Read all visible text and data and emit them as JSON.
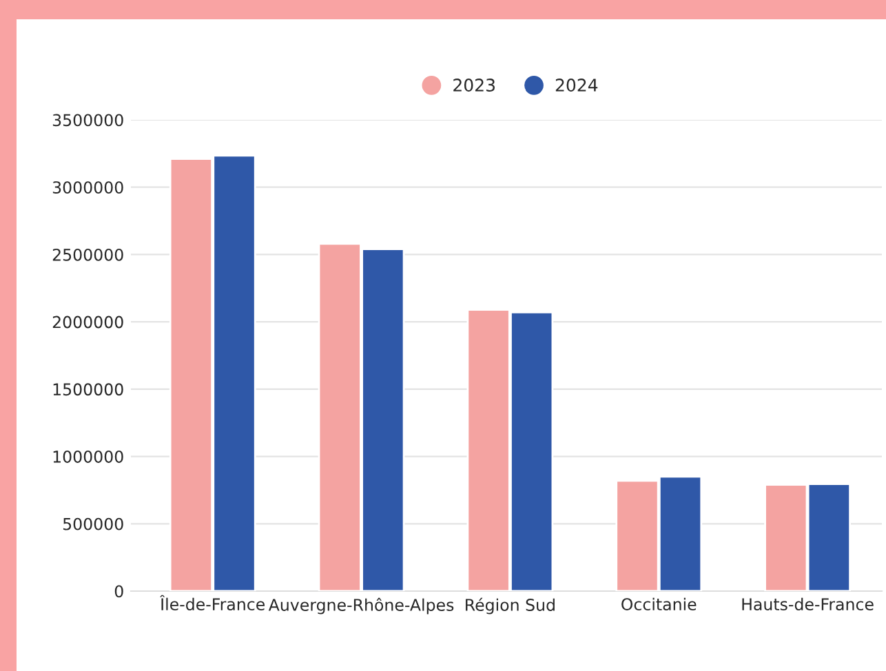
{
  "chart_data": {
    "type": "bar",
    "categories": [
      "Île-de-France",
      "Auvergne-Rhône-Alpes",
      "Région Sud",
      "Occitanie",
      "Hauts-de-France"
    ],
    "series": [
      {
        "name": "2023",
        "color": "#f4a3a1",
        "values": [
          3210000,
          2580000,
          2090000,
          820000,
          790000
        ]
      },
      {
        "name": "2024",
        "color": "#2f58a8",
        "values": [
          3235000,
          2540000,
          2070000,
          850000,
          795000
        ]
      }
    ],
    "ylim": [
      0,
      3500000
    ],
    "yticks": [
      0,
      500000,
      1000000,
      1500000,
      2000000,
      2500000,
      3000000,
      3500000
    ],
    "grid": "y",
    "legend": "top"
  }
}
